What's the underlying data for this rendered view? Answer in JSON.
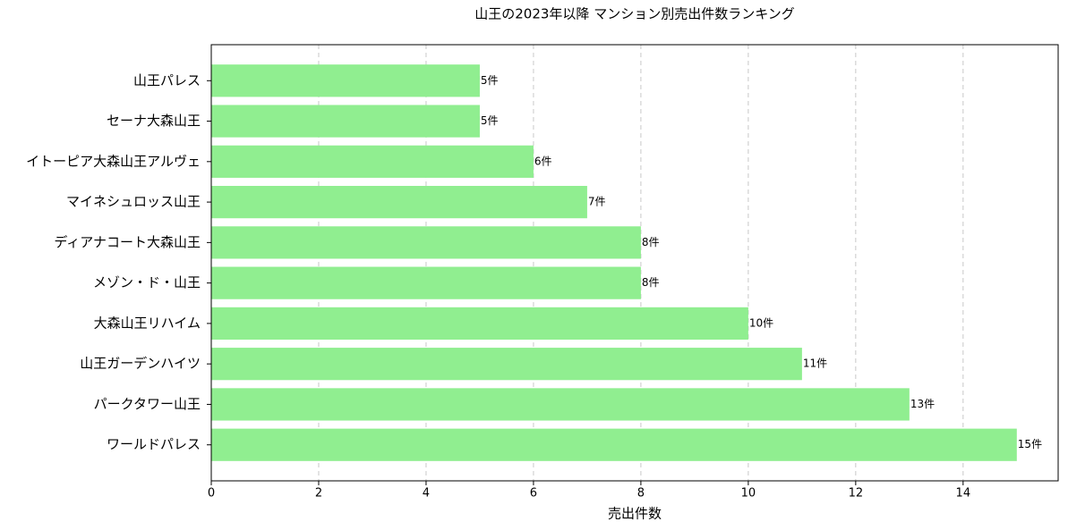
{
  "chart_data": {
    "type": "bar",
    "orientation": "horizontal",
    "title": "山王の2023年以降 マンション別売出件数ランキング",
    "x_label": "売出件数",
    "categories": [
      "山王パレス",
      "セーナ大森山王",
      "イトーピア大森山王アルヴェ",
      "マイネシュロッス山王",
      "ディアナコート大森山王",
      "メゾン・ド・山王",
      "大森山王リハイム",
      "山王ガーデンハイツ",
      "パークタワー山王",
      "ワールドパレス"
    ],
    "values": [
      5,
      5,
      6,
      7,
      8,
      8,
      10,
      11,
      13,
      15
    ],
    "value_labels": [
      "5件",
      "5件",
      "6件",
      "7件",
      "8件",
      "8件",
      "10件",
      "11件",
      "13件",
      "15件"
    ],
    "color": "#90ee90",
    "xlim": [
      0,
      15.77
    ],
    "xticks": [
      0,
      2,
      4,
      6,
      8,
      10,
      12,
      14
    ],
    "grid": true
  }
}
